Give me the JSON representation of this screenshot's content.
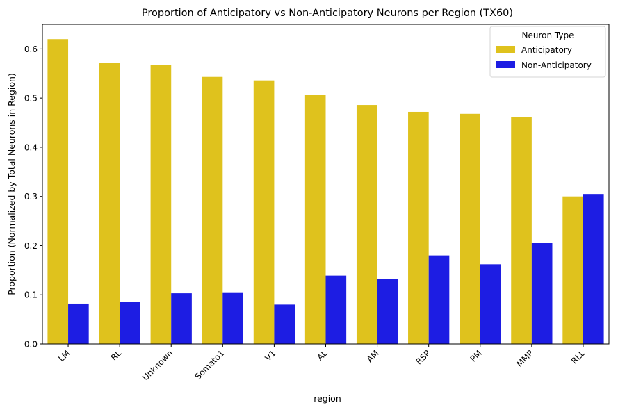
{
  "chart_data": {
    "type": "bar",
    "title": "Proportion of Anticipatory vs Non-Anticipatory Neurons per Region (TX60)",
    "xlabel": "region",
    "ylabel": "Proportion (Normalized by Total Neurons in Region)",
    "categories": [
      "LM",
      "RL",
      "Unknown",
      "Somato1",
      "V1",
      "AL",
      "AM",
      "RSP",
      "PM",
      "MMP",
      "RLL"
    ],
    "series": [
      {
        "name": "Anticipatory",
        "color": "#dfc21d",
        "values": [
          0.62,
          0.571,
          0.567,
          0.543,
          0.536,
          0.506,
          0.486,
          0.472,
          0.468,
          0.461,
          0.3
        ]
      },
      {
        "name": "Non-Anticipatory",
        "color": "#1d1de3",
        "values": [
          0.082,
          0.086,
          0.103,
          0.105,
          0.08,
          0.139,
          0.132,
          0.18,
          0.162,
          0.205,
          0.305
        ]
      }
    ],
    "ylim": [
      0,
      0.65
    ],
    "yticks": [
      0.0,
      0.1,
      0.2,
      0.3,
      0.4,
      0.5,
      0.6
    ],
    "ytick_labels": [
      "0.0",
      "0.1",
      "0.2",
      "0.3",
      "0.4",
      "0.5",
      "0.6"
    ],
    "grid": false,
    "legend": {
      "title": "Neuron Type",
      "placement": "top-right"
    }
  }
}
